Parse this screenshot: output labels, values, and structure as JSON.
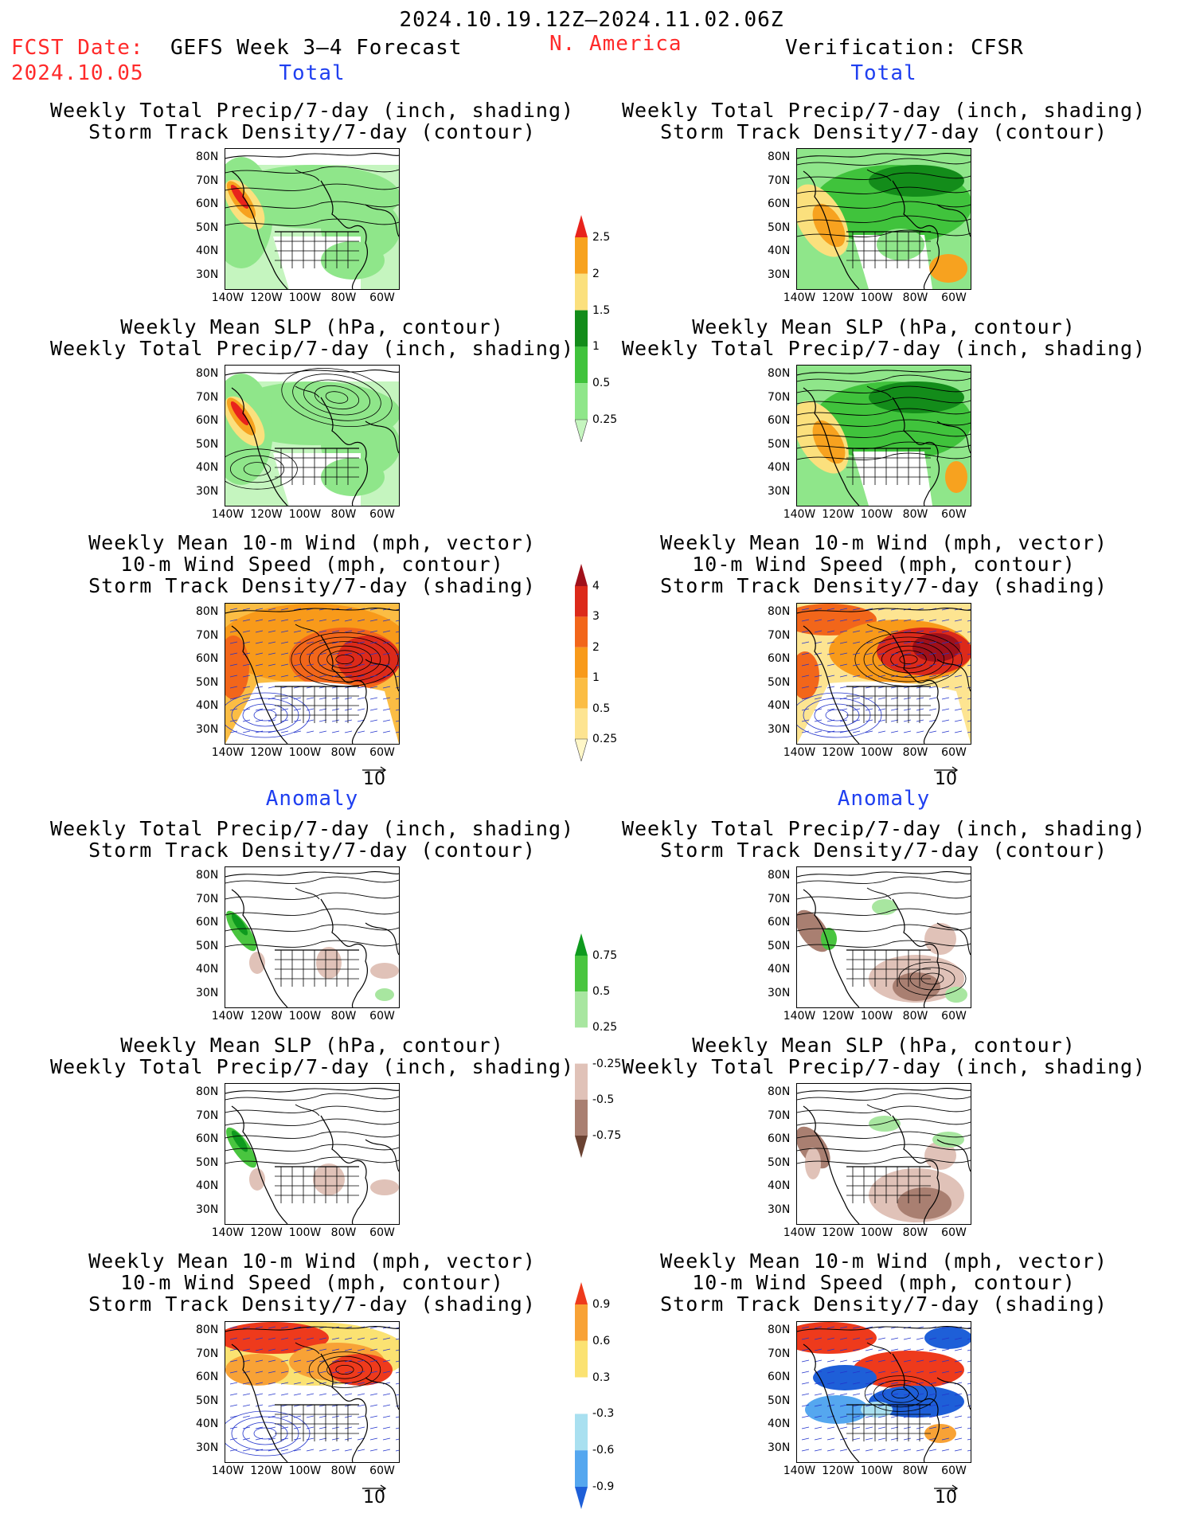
{
  "header": {
    "date_range": "2024.10.19.12Z–2024.11.02.06Z",
    "fcst_label": "FCST Date:",
    "fcst_date": "2024.10.05",
    "model_title": "GEFS Week 3–4 Forecast",
    "region": "N. America",
    "verification": "Verification: CFSR"
  },
  "sections": {
    "left_total": "Total",
    "right_total": "Total",
    "left_anomaly": "Anomaly",
    "right_anomaly": "Anomaly"
  },
  "panel_titles": {
    "precip": [
      "Weekly Total Precip/7-day (inch, shading)",
      "Storm Track Density/7-day (contour)"
    ],
    "slp": [
      "Weekly Mean SLP (hPa, contour)",
      "Weekly Total Precip/7-day (inch, shading)"
    ],
    "wind": [
      "Weekly Mean 10-m Wind (mph, vector)",
      "10-m Wind Speed (mph, contour)",
      "Storm Track Density/7-day (shading)"
    ]
  },
  "axes": {
    "lat_ticks": [
      "80N",
      "70N",
      "60N",
      "50N",
      "40N",
      "30N"
    ],
    "lon_ticks": [
      "140W",
      "120W",
      "100W",
      "80W",
      "60W"
    ]
  },
  "vector_reference": "10",
  "colorbars": {
    "precip_total": {
      "labels": [
        "2.5",
        "2",
        "1.5",
        "1",
        "0.5",
        "0.25"
      ],
      "colors": [
        "#e8231c",
        "#f7a21f",
        "#fbe07d",
        "#138c1a",
        "#40c33c",
        "#8fe68a",
        "#c5f5bf"
      ]
    },
    "storm_total": {
      "labels": [
        "4",
        "3",
        "2",
        "1",
        "0.5",
        "0.25"
      ],
      "colors": [
        "#a0101a",
        "#dc2a1a",
        "#f2661a",
        "#f89a1a",
        "#fbbd44",
        "#fde491",
        "#fff7c8"
      ]
    },
    "precip_anom": {
      "labels": [
        "0.75",
        "0.5",
        "0.25",
        "-0.25",
        "-0.5",
        "-0.75"
      ],
      "colors": [
        "#0e9a1e",
        "#49c53f",
        "#a8e6a0",
        "#ffffff",
        "#e0c2b8",
        "#a97f71",
        "#6a4232"
      ]
    },
    "storm_anom": {
      "labels": [
        "0.9",
        "0.6",
        "0.3",
        "-0.3",
        "-0.6",
        "-0.9"
      ],
      "colors": [
        "#ee3a1c",
        "#f8a236",
        "#fbe272",
        "#ffffff",
        "#a9e0f0",
        "#55a7ef",
        "#1e5fd8"
      ]
    },
    "colors": {
      "land_green": "#66cc55",
      "water_blue": "#2f6fe0",
      "contour": "#000000",
      "vector_blue": "#2233cc"
    }
  }
}
